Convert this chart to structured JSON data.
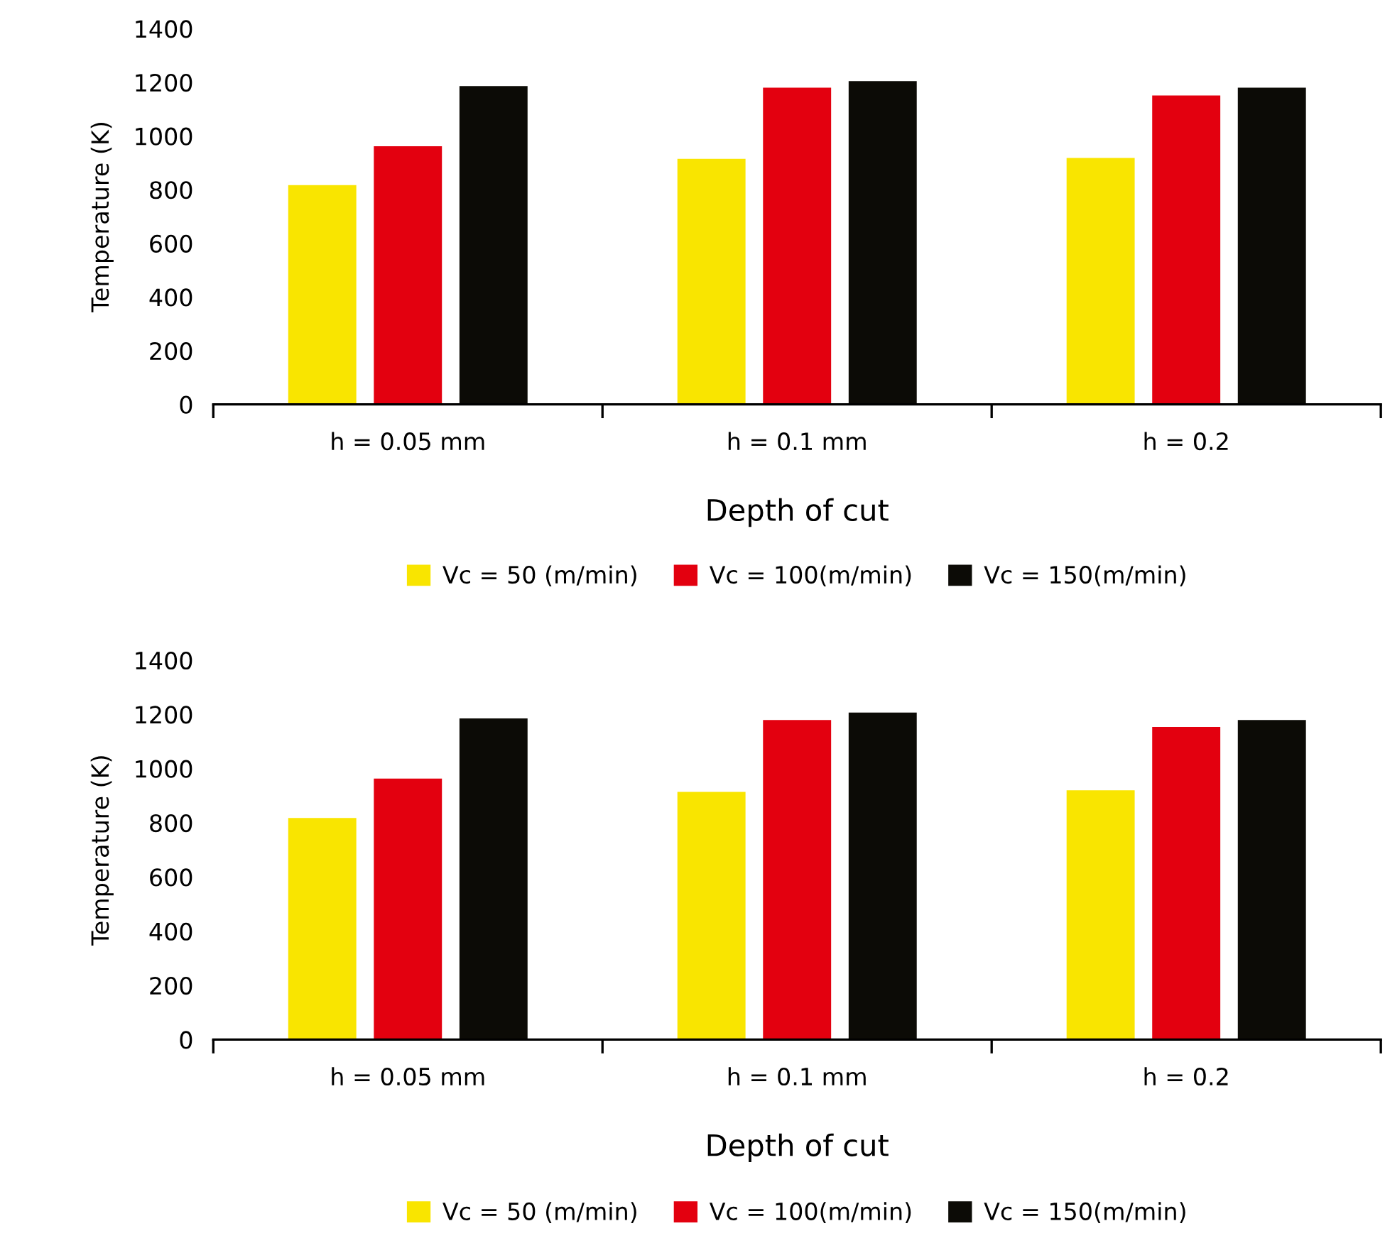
{
  "chart_data": [
    {
      "type": "bar",
      "xlabel": "Depth of cut",
      "ylabel": "Temperature (K)",
      "categories": [
        "h = 0.05 mm",
        "h = 0.1 mm",
        "h = 0.2"
      ],
      "ylim": [
        0,
        1400
      ],
      "yticks": [
        0,
        200,
        400,
        600,
        800,
        1000,
        1200,
        1400
      ],
      "legend": "bottom",
      "series": [
        {
          "name": "Vc = 50 (m/min)",
          "color": "#f9e500",
          "values": [
            817,
            915,
            918
          ]
        },
        {
          "name": "Vc = 100(m/min)",
          "color": "#e3000f",
          "values": [
            962,
            1180,
            1151
          ]
        },
        {
          "name": "Vc = 150(m/min)",
          "color": "#0c0b06",
          "values": [
            1186,
            1205,
            1180
          ]
        }
      ]
    },
    {
      "type": "bar",
      "xlabel": "Depth of cut",
      "ylabel": "Temperature (K)",
      "categories": [
        "h = 0.05 mm",
        "h = 0.1 mm",
        "h = 0.2"
      ],
      "ylim": [
        0,
        1400
      ],
      "yticks": [
        0,
        200,
        400,
        600,
        800,
        1000,
        1200,
        1400
      ],
      "legend": "bottom",
      "series": [
        {
          "name": "Vc = 50 (m/min)",
          "color": "#f9e500",
          "values": [
            818,
            914,
            920
          ]
        },
        {
          "name": "Vc = 100(m/min)",
          "color": "#e3000f",
          "values": [
            963,
            1179,
            1154
          ]
        },
        {
          "name": "Vc = 150(m/min)",
          "color": "#0c0b06",
          "values": [
            1185,
            1207,
            1179
          ]
        }
      ]
    }
  ]
}
